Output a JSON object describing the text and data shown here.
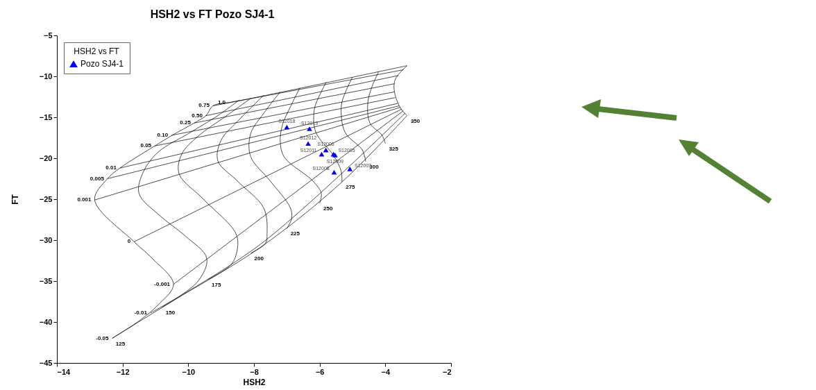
{
  "chart_data": [
    {
      "type": "scatter",
      "title": "HSH2 vs FT Pozo SJ4-1",
      "xlabel": "HSH2",
      "ylabel": "FT",
      "legend_title": "HSH2 vs FT",
      "legend": "top left",
      "xlim": [
        -14,
        -2
      ],
      "ylim": [
        -45,
        -5
      ],
      "xticks": [
        -14,
        -12,
        -10,
        -8,
        -6,
        -4,
        -2
      ],
      "yticks": [
        -45,
        -40,
        -35,
        -30,
        -25,
        -20,
        -15,
        -10,
        -5
      ],
      "series": [
        {
          "type": "line",
          "name": "1.0",
          "color": "#000000",
          "x": [
            -8.76,
            -7.85,
            -3.34
          ],
          "values": [
            -13.2,
            -12.5,
            -8.7
          ]
        },
        {
          "type": "line",
          "name": "0.75",
          "color": "#000000",
          "x": [
            -9.25,
            -3.45
          ],
          "values": [
            -13.6,
            -9.2
          ]
        },
        {
          "type": "line",
          "name": "0.50",
          "color": "#000000",
          "x": [
            -9.46,
            -3.6
          ],
          "values": [
            -14.8,
            -9.9
          ]
        },
        {
          "type": "line",
          "name": "0.25",
          "color": "#000000",
          "x": [
            -9.82,
            -3.72
          ],
          "values": [
            -15.7,
            -10.9
          ]
        },
        {
          "type": "line",
          "name": "0.10",
          "color": "#000000",
          "x": [
            -10.51,
            -3.73
          ],
          "values": [
            -17.2,
            -11.9
          ]
        },
        {
          "type": "line",
          "name": "0.05",
          "color": "#000000",
          "x": [
            -11.02,
            -3.7
          ],
          "values": [
            -18.5,
            -12.6
          ]
        },
        {
          "type": "line",
          "name": "0.01",
          "color": "#000000",
          "x": [
            -12.08,
            -3.62
          ],
          "values": [
            -21.2,
            -13.3
          ]
        },
        {
          "type": "line",
          "name": "0.005",
          "color": "#000000",
          "x": [
            -12.46,
            -3.58
          ],
          "values": [
            -22.5,
            -13.6
          ]
        },
        {
          "type": "line",
          "name": "0.001",
          "color": "#000000",
          "x": [
            -12.85,
            -3.55
          ],
          "values": [
            -25.1,
            -13.8
          ]
        },
        {
          "type": "line",
          "name": "0",
          "color": "#000000",
          "x": [
            -11.65,
            -3.5
          ],
          "values": [
            -30.2,
            -14.0
          ]
        },
        {
          "type": "line",
          "name": "-0.001",
          "color": "#000000",
          "x": [
            -10.45,
            -3.45
          ],
          "values": [
            -35.4,
            -14.2
          ]
        },
        {
          "type": "line",
          "name": "-0.01",
          "color": "#000000",
          "x": [
            -11.15,
            -7.8,
            -3.4
          ],
          "values": [
            -38.9,
            -30.5,
            -14.5
          ]
        },
        {
          "type": "line",
          "name": "-0.05",
          "color": "#000000",
          "x": [
            -12.32,
            -10.5,
            -7.81,
            -5.32,
            -3.34
          ],
          "values": [
            -42.0,
            -37.5,
            -30.9,
            -22.9,
            -14.8
          ]
        },
        {
          "type": "line",
          "name": "125",
          "color": "#000000",
          "x": [
            -12.32,
            -11.51,
            -10.94,
            -10.45,
            -11.08,
            -11.65,
            -12.85,
            -12.46,
            -12.08,
            -11.02,
            -10.49,
            -9.82,
            -9.46,
            -9.25,
            -8.76
          ],
          "values": [
            -42.0,
            -39.9,
            -38.0,
            -35.4,
            -32.3,
            -30.2,
            -25.1,
            -22.5,
            -21.2,
            -18.5,
            -17.2,
            -15.7,
            -14.8,
            -13.6,
            -13.2
          ]
        },
        {
          "type": "line",
          "name": "150",
          "color": "#000000",
          "x": [
            -10.8,
            -9.7,
            -9.44,
            -10.09,
            -10.87,
            -11.5,
            -11.36,
            -10.9,
            -10.0,
            -9.1,
            -8.45
          ],
          "values": [
            -38.2,
            -35.0,
            -32.2,
            -29.5,
            -27.0,
            -24.3,
            -21.6,
            -19.2,
            -17.0,
            -14.8,
            -12.9
          ]
        },
        {
          "type": "line",
          "name": "175",
          "color": "#000000",
          "x": [
            -9.4,
            -8.7,
            -8.51,
            -8.55,
            -9.54,
            -10.28,
            -10.2,
            -9.7,
            -8.9,
            -8.1
          ],
          "values": [
            -34.8,
            -33.0,
            -31.2,
            -29.2,
            -25.0,
            -21.9,
            -19.5,
            -17.3,
            -15.0,
            -12.7
          ]
        },
        {
          "type": "line",
          "name": "200",
          "color": "#000000",
          "x": [
            -8.1,
            -7.65,
            -7.6,
            -7.7,
            -8.5,
            -9.1,
            -9.0,
            -8.5,
            -7.7
          ],
          "values": [
            -31.6,
            -30.4,
            -29.2,
            -26.1,
            -22.8,
            -20.3,
            -17.8,
            -15.5,
            -12.3
          ]
        },
        {
          "type": "line",
          "name": "225",
          "color": "#000000",
          "x": [
            -7.0,
            -6.85,
            -6.9,
            -7.5,
            -8.1,
            -8.1,
            -7.7,
            -7.2
          ],
          "values": [
            -28.6,
            -27.3,
            -26.0,
            -22.8,
            -19.8,
            -17.0,
            -14.5,
            -11.9
          ]
        },
        {
          "type": "line",
          "name": "250",
          "color": "#000000",
          "x": [
            -6.0,
            -5.95,
            -6.2,
            -7.07,
            -7.2,
            -7.13,
            -6.9,
            -6.6
          ],
          "values": [
            -25.5,
            -24.3,
            -22.8,
            -19.9,
            -18.0,
            -15.9,
            -13.8,
            -11.4
          ]
        },
        {
          "type": "line",
          "name": "275",
          "color": "#000000",
          "x": [
            -5.32,
            -5.35,
            -5.59,
            -6.12,
            -6.16,
            -6.0,
            -5.8
          ],
          "values": [
            -22.9,
            -21.5,
            -19.6,
            -16.8,
            -14.0,
            -12.3,
            -10.7
          ]
        },
        {
          "type": "line",
          "name": "300",
          "color": "#000000",
          "x": [
            -4.6,
            -4.7,
            -5.23,
            -5.34,
            -5.2,
            -5.0
          ],
          "values": [
            -20.4,
            -19.0,
            -16.8,
            -13.6,
            -11.8,
            -10.1
          ]
        },
        {
          "type": "line",
          "name": "325",
          "color": "#000000",
          "x": [
            -4.0,
            -4.1,
            -4.47,
            -4.53,
            -4.4,
            -4.2
          ],
          "values": [
            -18.2,
            -17.2,
            -15.7,
            -13.1,
            -11.2,
            -9.4
          ]
        },
        {
          "type": "line",
          "name": "350",
          "color": "#000000",
          "x": [
            -3.34,
            -3.55,
            -3.73,
            -3.69,
            -3.34
          ],
          "values": [
            -14.8,
            -13.8,
            -11.7,
            -10.3,
            -8.7
          ]
        },
        {
          "name": "Pozo SJ4-1",
          "marker": "triangle",
          "color": "#0000ff",
          "x": [
            -7.0,
            -6.31,
            -6.35,
            -5.81,
            -5.94,
            -5.58,
            -5.53,
            -5.56,
            -5.08
          ],
          "values": [
            -16.2,
            -16.4,
            -18.2,
            -19.0,
            -19.5,
            -19.5,
            -19.6,
            -21.7,
            -21.3
          ]
        }
      ],
      "annotations": [
        {
          "text": "S12018",
          "x": -7.0,
          "y": -16.2
        },
        {
          "text": "S12013",
          "x": -6.31,
          "y": -16.4
        },
        {
          "text": "S12012",
          "x": -6.35,
          "y": -18.2
        },
        {
          "text": "S12006",
          "x": -5.81,
          "y": -19.0
        },
        {
          "text": "S12011",
          "x": -5.94,
          "y": -19.5
        },
        {
          "text": "S12005",
          "x": -5.58,
          "y": -19.5
        },
        {
          "text": "S12009",
          "x": -5.53,
          "y": -19.6
        },
        {
          "text": "S12008",
          "x": -5.56,
          "y": -21.7
        },
        {
          "text": "S12007",
          "x": -5.08,
          "y": -21.3
        }
      ]
    }
  ]
}
